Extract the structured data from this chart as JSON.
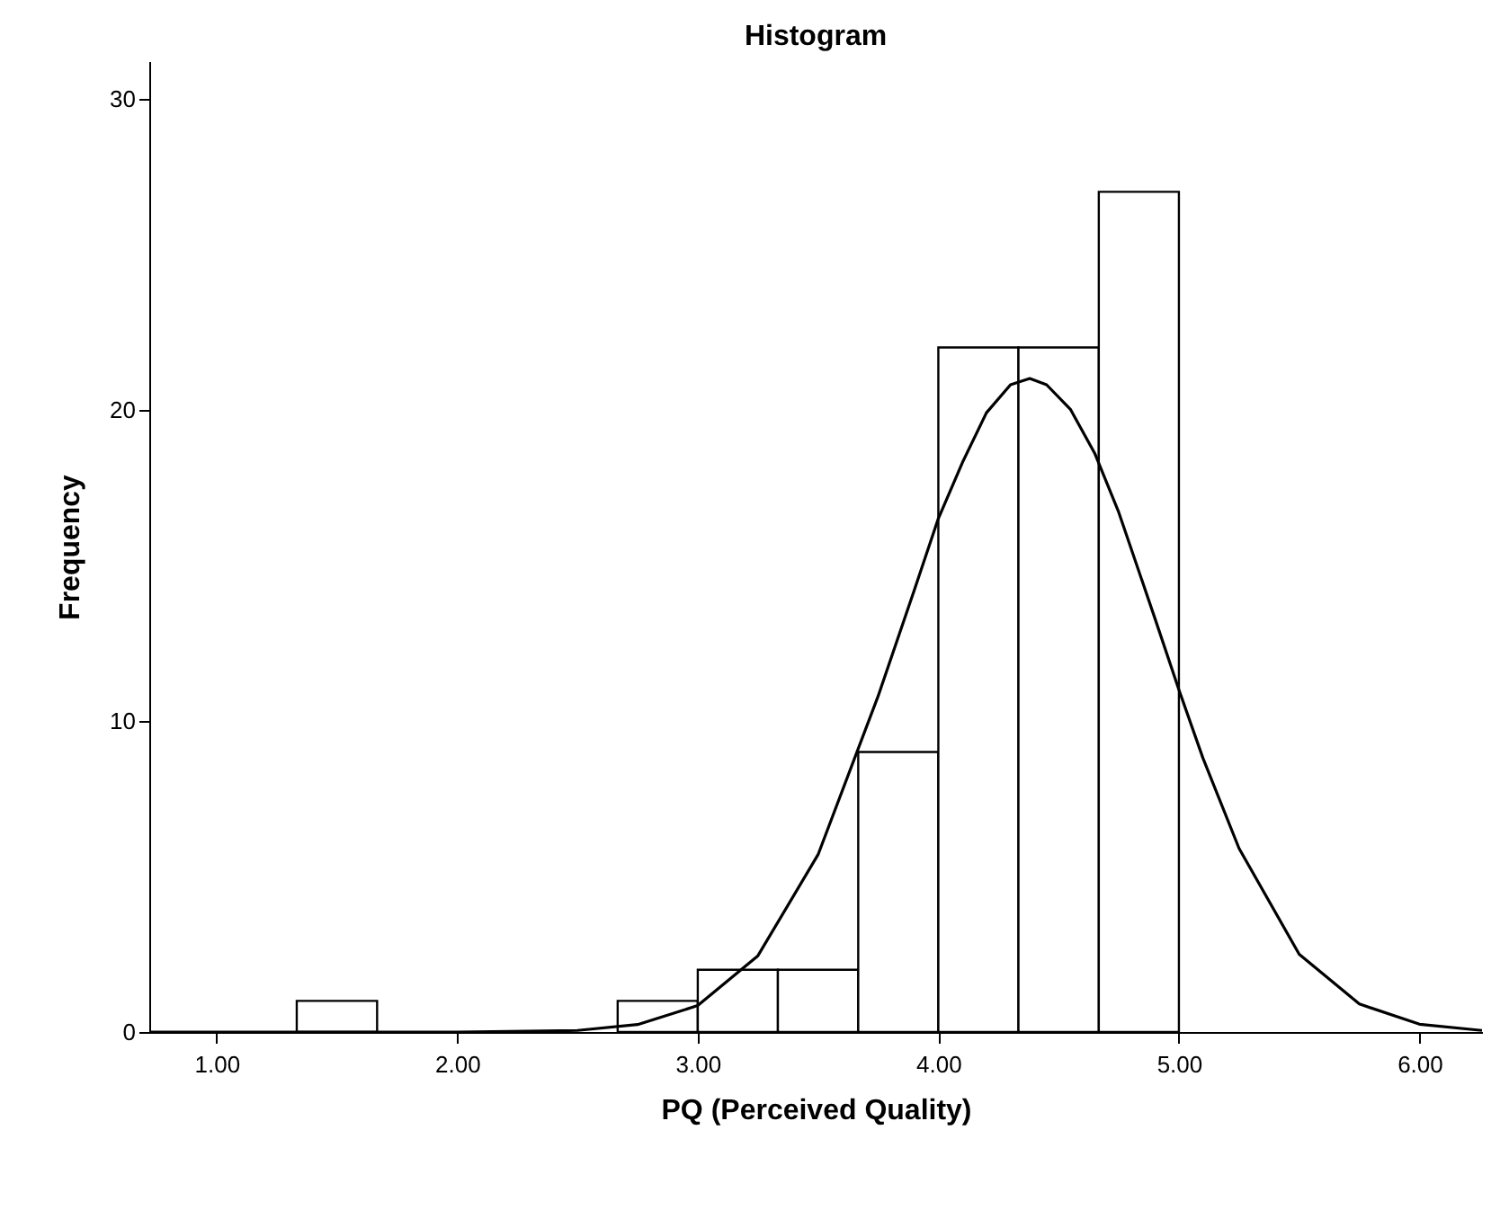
{
  "chart_data": {
    "type": "histogram",
    "title": "Histogram",
    "xlabel": "PQ (Perceived Quality)",
    "ylabel": "Frequency",
    "xlim": [
      0.72,
      6.26
    ],
    "ylim": [
      0,
      31.2
    ],
    "xticks": [
      {
        "value": 1,
        "label": "1.00"
      },
      {
        "value": 2,
        "label": "2.00"
      },
      {
        "value": 3,
        "label": "3.00"
      },
      {
        "value": 4,
        "label": "4.00"
      },
      {
        "value": 5,
        "label": "5.00"
      },
      {
        "value": 6,
        "label": "6.00"
      }
    ],
    "yticks": [
      0,
      10,
      20,
      30
    ],
    "grid": false,
    "series": [
      {
        "color": "#ffffff",
        "bins": [
          1.0,
          1.333,
          1.667,
          2.0,
          2.333,
          2.667,
          3.0,
          3.333,
          3.667,
          4.0,
          4.333,
          4.667,
          5.0
        ],
        "values": [
          0,
          1,
          0,
          0,
          0,
          1,
          2,
          2,
          9,
          22,
          22,
          27
        ]
      },
      {
        "type": "line",
        "color": "#000000",
        "x": [
          0.72,
          2.0,
          2.5,
          2.75,
          3.0,
          3.25,
          3.5,
          3.75,
          3.9,
          4.0,
          4.1,
          4.2,
          4.3,
          4.38,
          4.45,
          4.55,
          4.65,
          4.75,
          4.9,
          5.0,
          5.1,
          5.25,
          5.5,
          5.75,
          6.0,
          6.26
        ],
        "values": [
          0.0,
          0.0,
          0.05,
          0.24,
          0.85,
          2.45,
          5.7,
          10.8,
          14.2,
          16.5,
          18.3,
          19.9,
          20.8,
          21.0,
          20.8,
          20.0,
          18.6,
          16.7,
          13.3,
          11.0,
          8.8,
          5.9,
          2.5,
          0.9,
          0.25,
          0.05
        ]
      }
    ]
  }
}
